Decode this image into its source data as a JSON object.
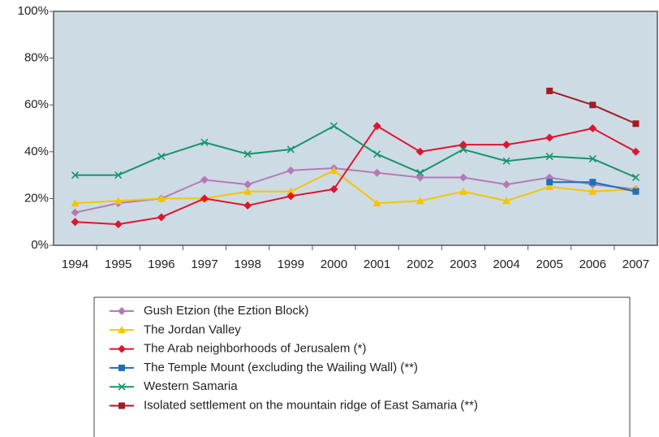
{
  "chart_data": {
    "type": "line",
    "categories": [
      "1994",
      "1995",
      "1996",
      "1997",
      "1998",
      "1999",
      "2000",
      "2001",
      "2002",
      "2003",
      "2004",
      "2005",
      "2006",
      "2007"
    ],
    "series": [
      {
        "name": "Gush Etzion (the Eztion Block)",
        "color": "#b57ab5",
        "marker": "diamond",
        "values": [
          14,
          18,
          20,
          28,
          26,
          32,
          33,
          31,
          29,
          29,
          26,
          29,
          26,
          24
        ]
      },
      {
        "name": "The Jordan Valley",
        "color": "#f5c400",
        "marker": "triangle",
        "values": [
          18,
          19,
          20,
          20,
          23,
          23,
          32,
          18,
          19,
          23,
          19,
          25,
          23,
          24
        ]
      },
      {
        "name": "The Arab neighborhoods of Jerusalem (*)",
        "color": "#e0142e",
        "marker": "diamond",
        "values": [
          10,
          9,
          12,
          20,
          17,
          21,
          24,
          51,
          40,
          43,
          43,
          46,
          50,
          40
        ]
      },
      {
        "name": "The Temple Mount (excluding the Wailing Wall) (**)",
        "color": "#1f6fb5",
        "marker": "square",
        "values": [
          null,
          null,
          null,
          null,
          null,
          null,
          null,
          null,
          null,
          null,
          null,
          27,
          27,
          23
        ]
      },
      {
        "name": "Western Samaria",
        "color": "#14966a",
        "marker": "x",
        "values": [
          30,
          30,
          38,
          44,
          39,
          41,
          51,
          39,
          31,
          41,
          36,
          38,
          37,
          29
        ]
      },
      {
        "name": "Isolated settlement on the mountain ridge of East Samaria (**)",
        "color": "#a01c24",
        "marker": "square",
        "values": [
          null,
          null,
          null,
          null,
          null,
          null,
          null,
          null,
          null,
          null,
          null,
          66,
          60,
          52
        ]
      }
    ],
    "ylim": [
      0,
      100
    ],
    "yticks": [
      {
        "value": 0,
        "label": "0%"
      },
      {
        "value": 20,
        "label": "20%"
      },
      {
        "value": 40,
        "label": "40%"
      },
      {
        "value": 60,
        "label": "60%"
      },
      {
        "value": 80,
        "label": "80%"
      },
      {
        "value": 100,
        "label": "100%"
      }
    ],
    "grid": false,
    "legend": "bottom"
  }
}
